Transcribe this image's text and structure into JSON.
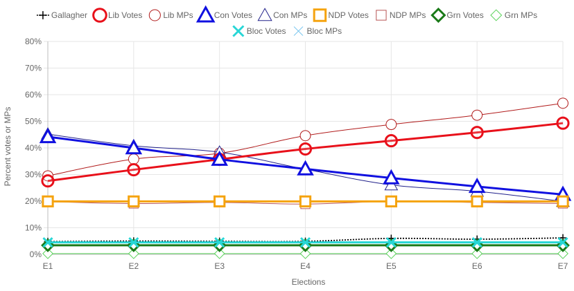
{
  "chart_data": {
    "type": "line",
    "xlabel": "Elections",
    "ylabel": "Percent votes or MPs",
    "ylim": [
      0,
      80
    ],
    "ytick_step": 10,
    "ytick_suffix": "%",
    "grid": true,
    "legend_position": "top",
    "categories": [
      "E1",
      "E2",
      "E3",
      "E4",
      "E5",
      "E6",
      "E7"
    ],
    "series": [
      {
        "name": "Gallagher",
        "color": "#000000",
        "marker": "plus",
        "style": "dotted",
        "values": [
          4.8,
          5.0,
          4.9,
          4.9,
          6.0,
          5.7,
          6.2
        ]
      },
      {
        "name": "Lib Votes",
        "color": "#e8101a",
        "marker": "circle",
        "style": "bold",
        "values": [
          27.6,
          31.8,
          35.7,
          39.6,
          42.7,
          45.8,
          49.3
        ]
      },
      {
        "name": "Lib MPs",
        "color": "#b01818",
        "marker": "circle-open",
        "style": "thin",
        "values": [
          29.5,
          35.8,
          38.0,
          44.6,
          48.8,
          52.3,
          56.8
        ]
      },
      {
        "name": "Con Votes",
        "color": "#1010e0",
        "marker": "triangle",
        "style": "bold",
        "values": [
          44.2,
          40.0,
          35.7,
          32.1,
          28.7,
          25.5,
          22.5
        ]
      },
      {
        "name": "Con MPs",
        "color": "#20208a",
        "marker": "triangle-open",
        "style": "thin",
        "values": [
          45.2,
          40.8,
          38.4,
          32.0,
          26.1,
          23.7,
          19.9
        ]
      },
      {
        "name": "NDP Votes",
        "color": "#f5a30f",
        "marker": "square",
        "style": "bold",
        "values": [
          19.9,
          19.9,
          19.9,
          19.9,
          19.9,
          19.9,
          19.9
        ]
      },
      {
        "name": "NDP MPs",
        "color": "#b85454",
        "marker": "square-open",
        "style": "thin",
        "values": [
          19.8,
          19.1,
          19.5,
          18.9,
          19.9,
          19.5,
          19.1
        ]
      },
      {
        "name": "Grn Votes",
        "color": "#1a7a18",
        "marker": "diamond",
        "style": "bold",
        "values": [
          3.4,
          3.4,
          3.4,
          3.4,
          3.4,
          3.4,
          3.4
        ]
      },
      {
        "name": "Grn MPs",
        "color": "#5ad35a",
        "marker": "diamond-open",
        "style": "thin",
        "values": [
          0.3,
          0.3,
          0.3,
          0.3,
          0.3,
          0.3,
          0.3
        ]
      },
      {
        "name": "Bloc Votes",
        "color": "#28d6d6",
        "marker": "cross",
        "style": "bold",
        "values": [
          4.5,
          4.5,
          4.5,
          4.5,
          4.5,
          4.5,
          4.5
        ]
      },
      {
        "name": "Bloc MPs",
        "color": "#7ec8ef",
        "marker": "cross-thin",
        "style": "thin",
        "values": [
          4.4,
          4.4,
          4.4,
          4.4,
          4.4,
          4.4,
          4.4
        ]
      }
    ]
  }
}
